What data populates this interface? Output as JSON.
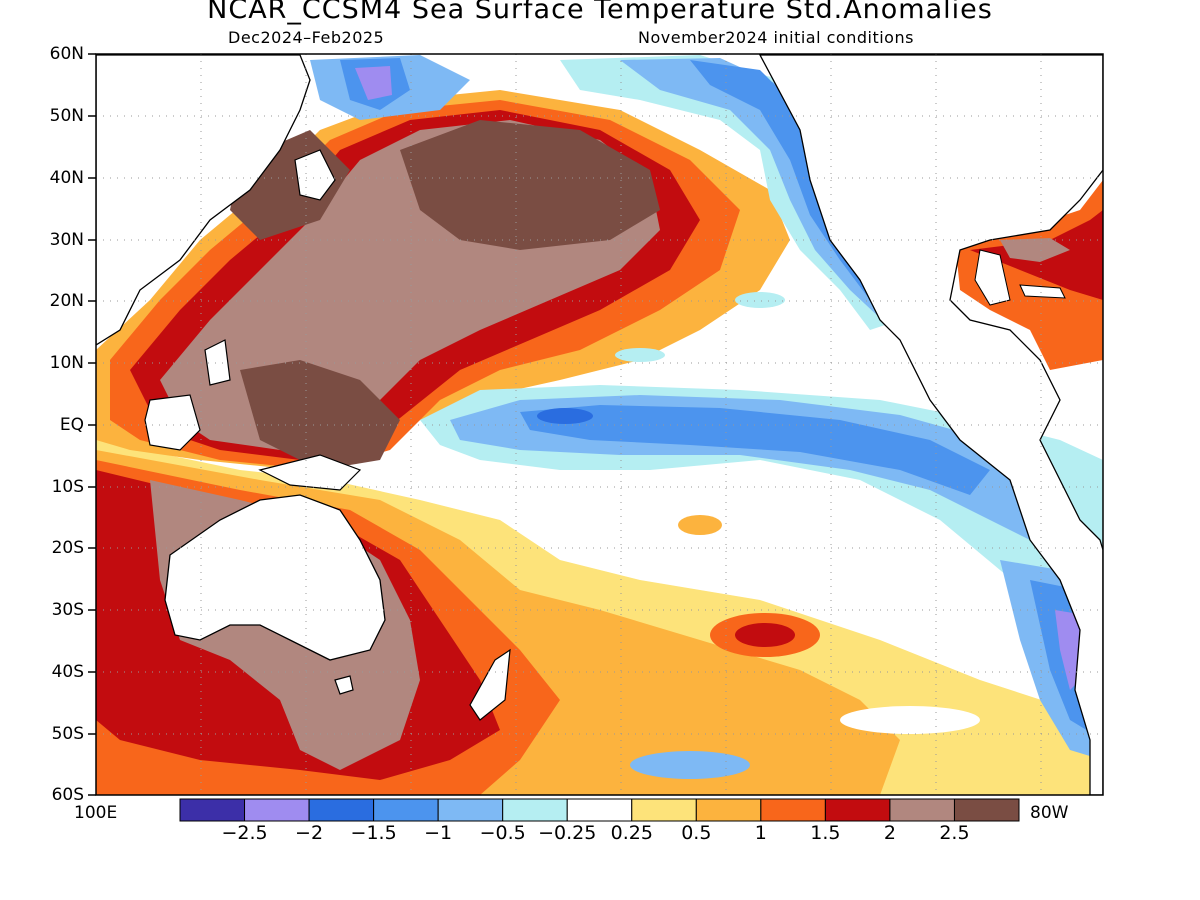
{
  "title": "NCAR_CCSM4 Sea Surface Temperature Std.Anomalies",
  "subtitle_left": "Dec2024–Feb2025",
  "subtitle_right": "November2024 initial conditions",
  "lat_labels": [
    "60N",
    "50N",
    "40N",
    "30N",
    "20N",
    "10N",
    "EQ",
    "10S",
    "20S",
    "30S",
    "40S",
    "50S",
    "60S"
  ],
  "lon_labels": {
    "west": "100E",
    "east": "80W"
  },
  "colorbar": {
    "labels": [
      "−2.5",
      "−2",
      "−1.5",
      "−1",
      "−0.5",
      "−0.25",
      "0.25",
      "0.5",
      "1",
      "1.5",
      "2",
      "2.5"
    ],
    "colors": [
      "#3c2fa8",
      "#9f8cf0",
      "#2a6de0",
      "#4c94ee",
      "#7eb9f4",
      "#b5eef2",
      "#ffffff",
      "#fde37a",
      "#fcb33e",
      "#f8661b",
      "#c20c0f",
      "#b1877f",
      "#7a4d43"
    ]
  }
}
